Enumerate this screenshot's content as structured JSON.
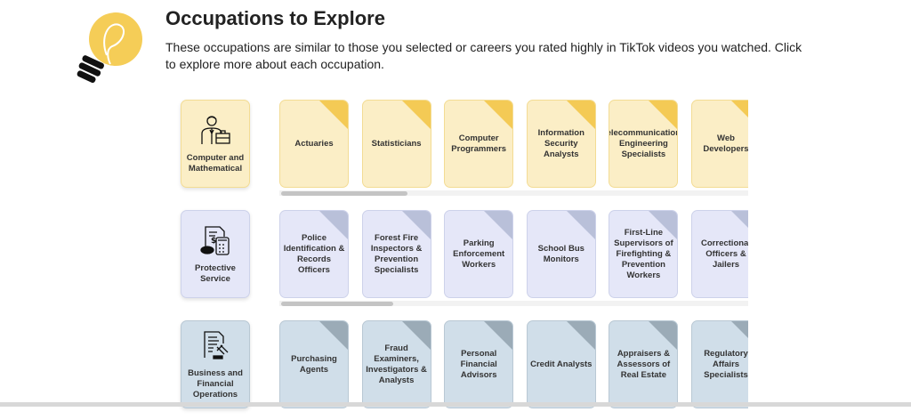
{
  "header": {
    "title": "Occupations to Explore",
    "description": "These occupations are similar to those you selected or careers you rated highly in TikTok videos you watched. Click to explore more about each occupation.",
    "icon": "lightbulb-icon"
  },
  "rows": [
    {
      "category": "Computer and Mathematical",
      "icon": "businessman-briefcase-icon",
      "colors": {
        "bg": "#fbeec6",
        "border": "#f3dc94",
        "corner": "#f4ca55"
      },
      "scroll": 0.27,
      "occupations": [
        "Actuaries",
        "Statisticians",
        "Computer Programmers",
        "Information Security Analysts",
        "Telecommunications Engineering Specialists",
        "Web Developers"
      ]
    },
    {
      "category": "Protective Service",
      "icon": "calculator-document-icon",
      "colors": {
        "bg": "#e5e7f8",
        "border": "#cdd2ea",
        "corner": "#b9c0d9"
      },
      "scroll": 0.24,
      "occupations": [
        "Police Identification & Records Officers",
        "Forest Fire Inspectors & Prevention Specialists",
        "Parking Enforcement Workers",
        "School Bus Monitors",
        "First-Line Supervisors of Firefighting & Prevention Workers",
        "Correctional Officers & Jailers"
      ]
    },
    {
      "category": "Business and Financial Operations",
      "icon": "document-gavel-icon",
      "colors": {
        "bg": "#d0dee9",
        "border": "#b9c8d4",
        "corner": "#9babb7"
      },
      "scroll": null,
      "occupations": [
        "Purchasing Agents",
        "Fraud Examiners, Investigators & Analysts",
        "Personal Financial Advisors",
        "Credit Analysts",
        "Appraisers & Assessors of Real Estate",
        "Regulatory Affairs Specialists"
      ]
    }
  ]
}
